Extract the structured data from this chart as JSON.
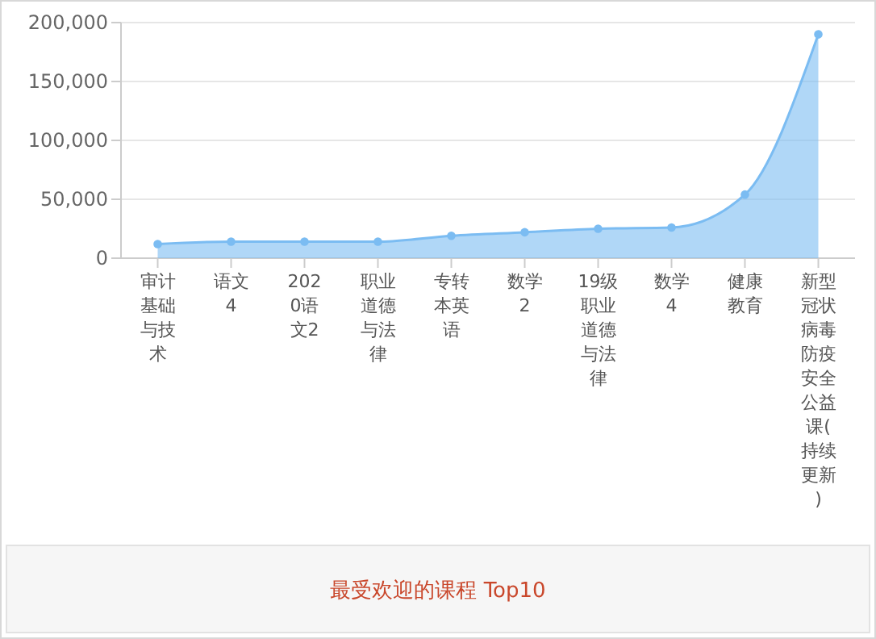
{
  "chart_data": {
    "type": "area",
    "title": "最受欢迎的课程 Top10",
    "categories": [
      "审计基础与技术",
      "语文4",
      "2020语文2",
      "职业道德与法律",
      "专转本英语",
      "数学2",
      "19级职业道德与法律",
      "数学4",
      "健康教育",
      "新型冠状病毒防疫安全公益课(持续更新)"
    ],
    "series": [
      {
        "color": "#7bbcf2",
        "values": [
          12000,
          14000,
          14000,
          14000,
          19000,
          22000,
          25000,
          26000,
          54000,
          190000
        ]
      }
    ],
    "ylim": [
      0,
      200000
    ],
    "yticks": [
      {
        "value": 0,
        "label": "0"
      },
      {
        "value": 50000,
        "label": "50,000"
      },
      {
        "value": 100000,
        "label": "100,000"
      },
      {
        "value": 150000,
        "label": "150,000"
      },
      {
        "value": 200000,
        "label": "200,000"
      }
    ],
    "grid": "y",
    "marker": "circle"
  }
}
